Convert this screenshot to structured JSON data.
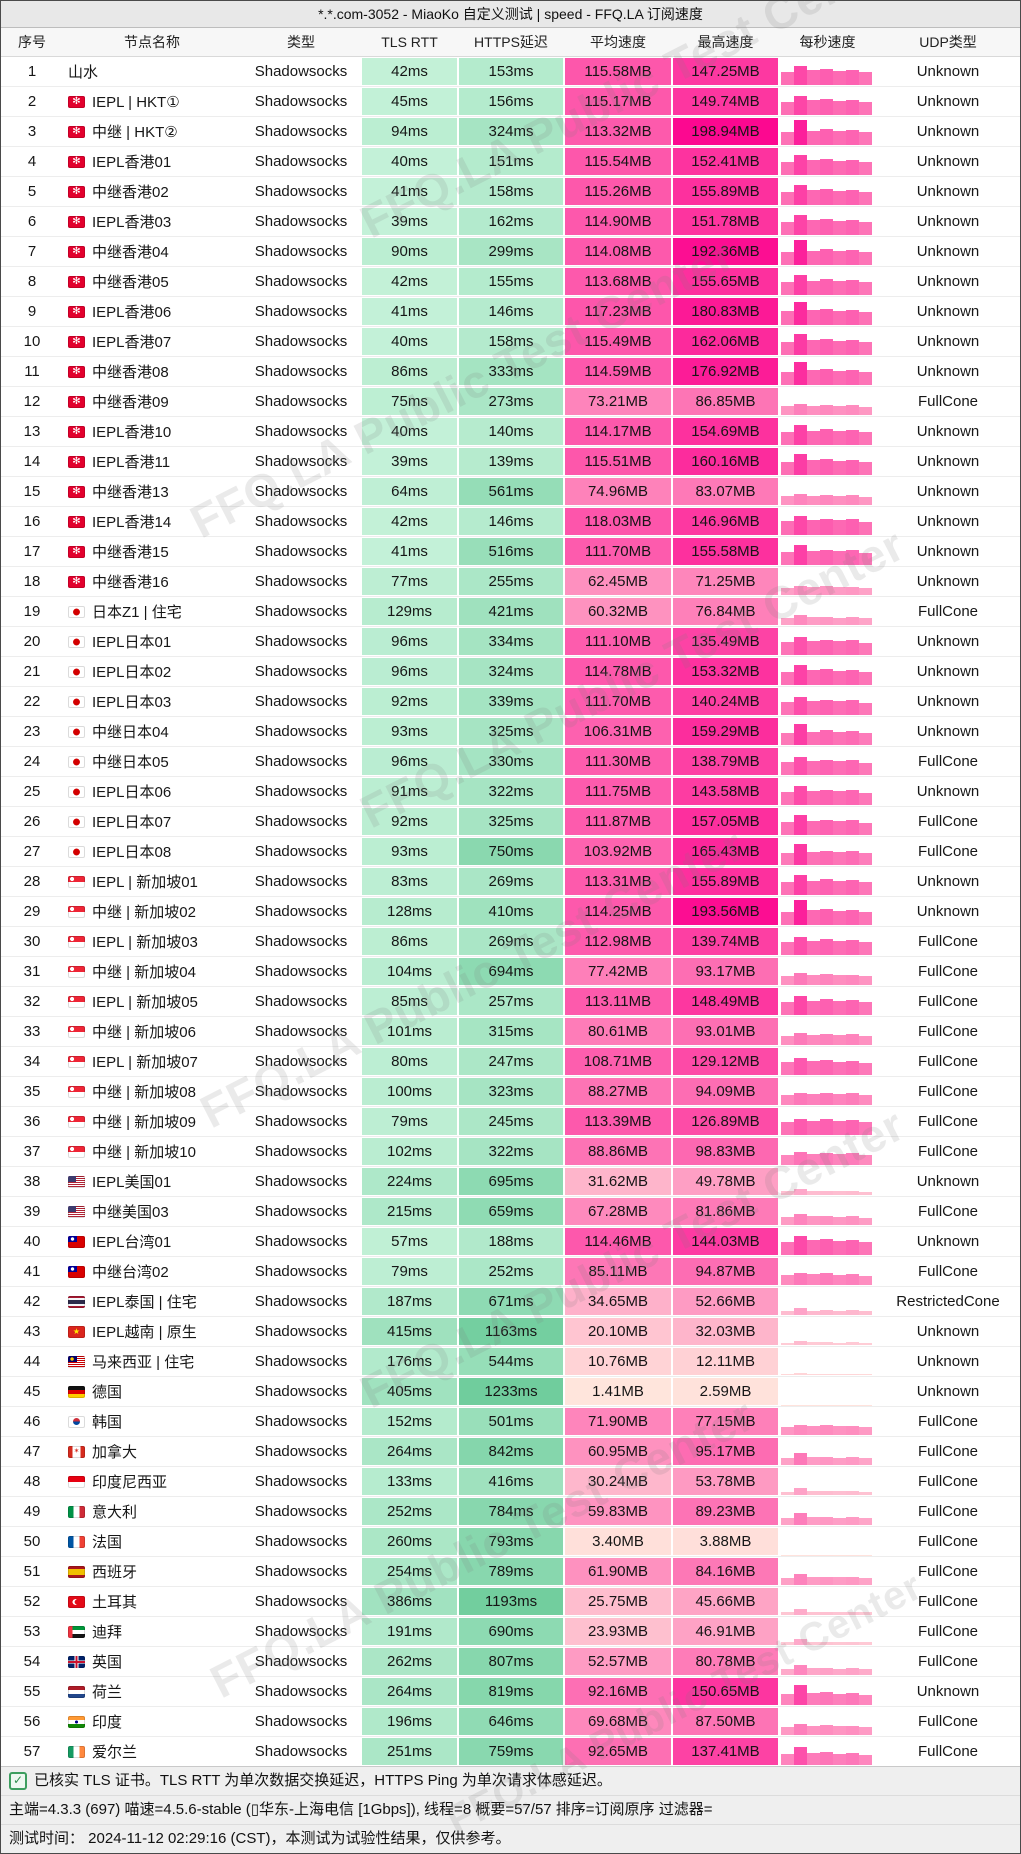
{
  "window": {
    "title": "*.*.com-3052 - MiaoKo 自定义测试 | speed - FFQ.LA 订阅速度"
  },
  "watermark": {
    "text": "FFQ.LA Public Test Center"
  },
  "table": {
    "columns": [
      "序号",
      "节点名称",
      "类型",
      "TLS RTT",
      "HTTPS延迟",
      "平均速度",
      "最高速度",
      "每秒速度",
      "UDP类型"
    ],
    "type_label": "Shadowsocks",
    "rows": [
      {
        "no": 1,
        "flag": "",
        "name": "山水",
        "tls": 42,
        "https": 153,
        "avg": 115.58,
        "max": 147.25,
        "udp": "Unknown"
      },
      {
        "no": 2,
        "flag": "hk",
        "name": "IEPL | HKT①",
        "tls": 45,
        "https": 156,
        "avg": 115.17,
        "max": 149.74,
        "udp": "Unknown"
      },
      {
        "no": 3,
        "flag": "hk",
        "name": "中继 | HKT②",
        "tls": 94,
        "https": 324,
        "avg": 113.32,
        "max": 198.94,
        "udp": "Unknown"
      },
      {
        "no": 4,
        "flag": "hk",
        "name": "IEPL香港01",
        "tls": 40,
        "https": 151,
        "avg": 115.54,
        "max": 152.41,
        "udp": "Unknown"
      },
      {
        "no": 5,
        "flag": "hk",
        "name": "中继香港02",
        "tls": 41,
        "https": 158,
        "avg": 115.26,
        "max": 155.89,
        "udp": "Unknown"
      },
      {
        "no": 6,
        "flag": "hk",
        "name": "IEPL香港03",
        "tls": 39,
        "https": 162,
        "avg": 114.9,
        "max": 151.78,
        "udp": "Unknown"
      },
      {
        "no": 7,
        "flag": "hk",
        "name": "中继香港04",
        "tls": 90,
        "https": 299,
        "avg": 114.08,
        "max": 192.36,
        "udp": "Unknown"
      },
      {
        "no": 8,
        "flag": "hk",
        "name": "中继香港05",
        "tls": 42,
        "https": 155,
        "avg": 113.68,
        "max": 155.65,
        "udp": "Unknown"
      },
      {
        "no": 9,
        "flag": "hk",
        "name": "IEPL香港06",
        "tls": 41,
        "https": 146,
        "avg": 117.23,
        "max": 180.83,
        "udp": "Unknown"
      },
      {
        "no": 10,
        "flag": "hk",
        "name": "IEPL香港07",
        "tls": 40,
        "https": 158,
        "avg": 115.49,
        "max": 162.06,
        "udp": "Unknown"
      },
      {
        "no": 11,
        "flag": "hk",
        "name": "中继香港08",
        "tls": 86,
        "https": 333,
        "avg": 114.59,
        "max": 176.92,
        "udp": "Unknown"
      },
      {
        "no": 12,
        "flag": "hk",
        "name": "中继香港09",
        "tls": 75,
        "https": 273,
        "avg": 73.21,
        "max": 86.85,
        "udp": "FullCone"
      },
      {
        "no": 13,
        "flag": "hk",
        "name": "IEPL香港10",
        "tls": 40,
        "https": 140,
        "avg": 114.17,
        "max": 154.69,
        "udp": "Unknown"
      },
      {
        "no": 14,
        "flag": "hk",
        "name": "IEPL香港11",
        "tls": 39,
        "https": 139,
        "avg": 115.51,
        "max": 160.16,
        "udp": "Unknown"
      },
      {
        "no": 15,
        "flag": "hk",
        "name": "中继香港13",
        "tls": 64,
        "https": 561,
        "avg": 74.96,
        "max": 83.07,
        "udp": "Unknown"
      },
      {
        "no": 16,
        "flag": "hk",
        "name": "IEPL香港14",
        "tls": 42,
        "https": 146,
        "avg": 118.03,
        "max": 146.96,
        "udp": "Unknown"
      },
      {
        "no": 17,
        "flag": "hk",
        "name": "中继香港15",
        "tls": 41,
        "https": 516,
        "avg": 111.7,
        "max": 155.58,
        "udp": "Unknown"
      },
      {
        "no": 18,
        "flag": "hk",
        "name": "中继香港16",
        "tls": 77,
        "https": 255,
        "avg": 62.45,
        "max": 71.25,
        "udp": "Unknown"
      },
      {
        "no": 19,
        "flag": "jp",
        "name": "日本Z1 | 住宅",
        "tls": 129,
        "https": 421,
        "avg": 60.32,
        "max": 76.84,
        "udp": "FullCone"
      },
      {
        "no": 20,
        "flag": "jp",
        "name": "IEPL日本01",
        "tls": 96,
        "https": 334,
        "avg": 111.1,
        "max": 135.49,
        "udp": "Unknown"
      },
      {
        "no": 21,
        "flag": "jp",
        "name": "IEPL日本02",
        "tls": 96,
        "https": 324,
        "avg": 114.78,
        "max": 153.32,
        "udp": "Unknown"
      },
      {
        "no": 22,
        "flag": "jp",
        "name": "IEPL日本03",
        "tls": 92,
        "https": 339,
        "avg": 111.7,
        "max": 140.24,
        "udp": "Unknown"
      },
      {
        "no": 23,
        "flag": "jp",
        "name": "中继日本04",
        "tls": 93,
        "https": 325,
        "avg": 106.31,
        "max": 159.29,
        "udp": "Unknown"
      },
      {
        "no": 24,
        "flag": "jp",
        "name": "中继日本05",
        "tls": 96,
        "https": 330,
        "avg": 111.3,
        "max": 138.79,
        "udp": "FullCone"
      },
      {
        "no": 25,
        "flag": "jp",
        "name": "IEPL日本06",
        "tls": 91,
        "https": 322,
        "avg": 111.75,
        "max": 143.58,
        "udp": "Unknown"
      },
      {
        "no": 26,
        "flag": "jp",
        "name": "IEPL日本07",
        "tls": 92,
        "https": 325,
        "avg": 111.87,
        "max": 157.05,
        "udp": "FullCone"
      },
      {
        "no": 27,
        "flag": "jp",
        "name": "IEPL日本08",
        "tls": 93,
        "https": 750,
        "avg": 103.92,
        "max": 165.43,
        "udp": "FullCone"
      },
      {
        "no": 28,
        "flag": "sg",
        "name": "IEPL | 新加坡01",
        "tls": 83,
        "https": 269,
        "avg": 113.31,
        "max": 155.89,
        "udp": "Unknown"
      },
      {
        "no": 29,
        "flag": "sg",
        "name": "中继 | 新加坡02",
        "tls": 128,
        "https": 410,
        "avg": 114.25,
        "max": 193.56,
        "udp": "Unknown"
      },
      {
        "no": 30,
        "flag": "sg",
        "name": "IEPL | 新加坡03",
        "tls": 86,
        "https": 269,
        "avg": 112.98,
        "max": 139.74,
        "udp": "FullCone"
      },
      {
        "no": 31,
        "flag": "sg",
        "name": "中继 | 新加坡04",
        "tls": 104,
        "https": 694,
        "avg": 77.42,
        "max": 93.17,
        "udp": "FullCone"
      },
      {
        "no": 32,
        "flag": "sg",
        "name": "IEPL | 新加坡05",
        "tls": 85,
        "https": 257,
        "avg": 113.11,
        "max": 148.49,
        "udp": "FullCone"
      },
      {
        "no": 33,
        "flag": "sg",
        "name": "中继 | 新加坡06",
        "tls": 101,
        "https": 315,
        "avg": 80.61,
        "max": 93.01,
        "udp": "FullCone"
      },
      {
        "no": 34,
        "flag": "sg",
        "name": "IEPL | 新加坡07",
        "tls": 80,
        "https": 247,
        "avg": 108.71,
        "max": 129.12,
        "udp": "FullCone"
      },
      {
        "no": 35,
        "flag": "sg",
        "name": "中继 | 新加坡08",
        "tls": 100,
        "https": 323,
        "avg": 88.27,
        "max": 94.09,
        "udp": "FullCone"
      },
      {
        "no": 36,
        "flag": "sg",
        "name": "中继 | 新加坡09",
        "tls": 79,
        "https": 245,
        "avg": 113.39,
        "max": 126.89,
        "udp": "FullCone"
      },
      {
        "no": 37,
        "flag": "sg",
        "name": "中继 | 新加坡10",
        "tls": 102,
        "https": 322,
        "avg": 88.86,
        "max": 98.83,
        "udp": "FullCone"
      },
      {
        "no": 38,
        "flag": "us",
        "name": "IEPL美国01",
        "tls": 224,
        "https": 695,
        "avg": 31.62,
        "max": 49.78,
        "udp": "Unknown"
      },
      {
        "no": 39,
        "flag": "us",
        "name": "中继美国03",
        "tls": 215,
        "https": 659,
        "avg": 67.28,
        "max": 81.86,
        "udp": "FullCone"
      },
      {
        "no": 40,
        "flag": "tw",
        "name": "IEPL台湾01",
        "tls": 57,
        "https": 188,
        "avg": 114.46,
        "max": 144.03,
        "udp": "Unknown"
      },
      {
        "no": 41,
        "flag": "tw",
        "name": "中继台湾02",
        "tls": 79,
        "https": 252,
        "avg": 85.11,
        "max": 94.87,
        "udp": "FullCone"
      },
      {
        "no": 42,
        "flag": "th",
        "name": "IEPL泰国 | 住宅",
        "tls": 187,
        "https": 671,
        "avg": 34.65,
        "max": 52.66,
        "udp": "RestrictedCone"
      },
      {
        "no": 43,
        "flag": "vn",
        "name": "IEPL越南 | 原生",
        "tls": 415,
        "https": 1163,
        "avg": 20.1,
        "max": 32.03,
        "udp": "Unknown"
      },
      {
        "no": 44,
        "flag": "my",
        "name": "马来西亚 | 住宅",
        "tls": 176,
        "https": 544,
        "avg": 10.76,
        "max": 12.11,
        "udp": "Unknown"
      },
      {
        "no": 45,
        "flag": "de",
        "name": "德国",
        "tls": 405,
        "https": 1233,
        "avg": 1.41,
        "max": 2.59,
        "udp": "Unknown"
      },
      {
        "no": 46,
        "flag": "kr",
        "name": "韩国",
        "tls": 152,
        "https": 501,
        "avg": 71.9,
        "max": 77.15,
        "udp": "FullCone"
      },
      {
        "no": 47,
        "flag": "ca",
        "name": "加拿大",
        "tls": 264,
        "https": 842,
        "avg": 60.95,
        "max": 95.17,
        "udp": "FullCone"
      },
      {
        "no": 48,
        "flag": "id",
        "name": "印度尼西亚",
        "tls": 133,
        "https": 416,
        "avg": 30.24,
        "max": 53.78,
        "udp": "FullCone"
      },
      {
        "no": 49,
        "flag": "it",
        "name": "意大利",
        "tls": 252,
        "https": 784,
        "avg": 59.83,
        "max": 89.23,
        "udp": "FullCone"
      },
      {
        "no": 50,
        "flag": "fr",
        "name": "法国",
        "tls": 260,
        "https": 793,
        "avg": 3.4,
        "max": 3.88,
        "udp": "FullCone"
      },
      {
        "no": 51,
        "flag": "es",
        "name": "西班牙",
        "tls": 254,
        "https": 789,
        "avg": 61.9,
        "max": 84.16,
        "udp": "FullCone"
      },
      {
        "no": 52,
        "flag": "tr",
        "name": "土耳其",
        "tls": 386,
        "https": 1193,
        "avg": 25.75,
        "max": 45.66,
        "udp": "FullCone"
      },
      {
        "no": 53,
        "flag": "ae",
        "name": "迪拜",
        "tls": 191,
        "https": 690,
        "avg": 23.93,
        "max": 46.91,
        "udp": "FullCone"
      },
      {
        "no": 54,
        "flag": "gb",
        "name": "英国",
        "tls": 262,
        "https": 807,
        "avg": 52.57,
        "max": 80.78,
        "udp": "FullCone"
      },
      {
        "no": 55,
        "flag": "nl",
        "name": "荷兰",
        "tls": 264,
        "https": 819,
        "avg": 92.16,
        "max": 150.65,
        "udp": "Unknown"
      },
      {
        "no": 56,
        "flag": "in",
        "name": "印度",
        "tls": 196,
        "https": 646,
        "avg": 69.68,
        "max": 87.5,
        "udp": "FullCone"
      },
      {
        "no": 57,
        "flag": "ie",
        "name": "爱尔兰",
        "tls": 251,
        "https": 759,
        "avg": 92.65,
        "max": 137.41,
        "udp": "FullCone"
      }
    ],
    "units": {
      "latency": "ms",
      "speed": "MB"
    }
  },
  "footer": {
    "line1": "已核实 TLS 证书。TLS RTT 为单次数据交换延迟，HTTPS Ping 为单次请求体感延迟。",
    "line2": "主端=4.3.3 (697) 喵速=4.5.6-stable (▯华东-上海电信 [1Gbps]), 线程=8 概要=57/57 排序=订阅原序 过滤器=",
    "line3": "测试时间： 2024-11-12 02:29:16 (CST)，本测试为试验性结果，仅供参考。"
  },
  "colors": {
    "green_light": "#c5f2d9",
    "green_dark": "#70cd9d",
    "pink_light": "#ffe9dd",
    "pink_dark": "#fc0790",
    "check_green": "#3d9e5f"
  }
}
